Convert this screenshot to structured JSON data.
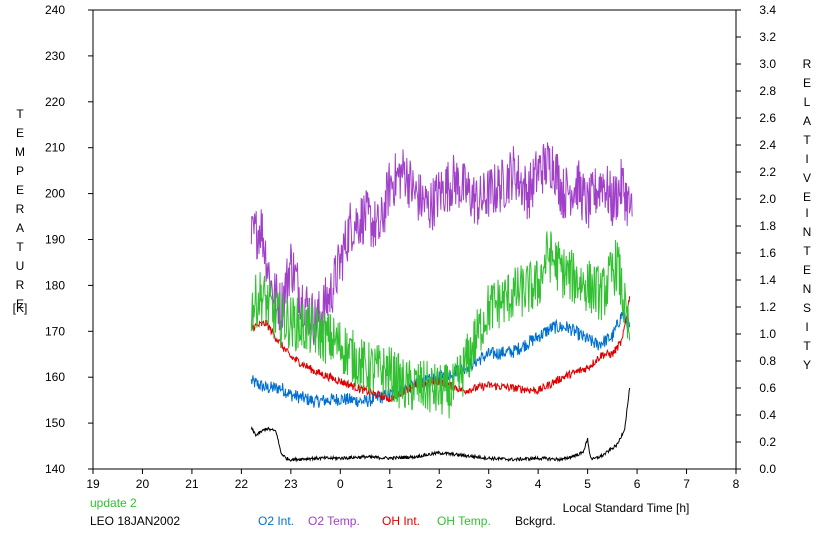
{
  "chart_data": {
    "type": "line",
    "xlabel": "Local Standard Time [h]",
    "x_ticks": [
      "19",
      "20",
      "21",
      "22",
      "23",
      "0",
      "1",
      "2",
      "3",
      "4",
      "5",
      "6",
      "7",
      "8"
    ],
    "xlim": [
      19,
      32
    ],
    "y_left": {
      "label_letters": [
        "T",
        "E",
        "M",
        "P",
        "E",
        "R",
        "A",
        "T",
        "U",
        "R",
        "E"
      ],
      "unit": "[K]",
      "ylim": [
        140,
        240
      ],
      "ticks": [
        "140",
        "150",
        "160",
        "170",
        "180",
        "190",
        "200",
        "210",
        "220",
        "230",
        "240"
      ]
    },
    "y_right": {
      "label_word1": [
        "R",
        "E",
        "L",
        "A",
        "T",
        "I",
        "V",
        "E"
      ],
      "label_word2": [
        "I",
        "N",
        "T",
        "E",
        "N",
        "S",
        "I",
        "T",
        "Y"
      ],
      "ylim": [
        0,
        3.4
      ],
      "ticks": [
        "0.0",
        "0.2",
        "0.4",
        "0.6",
        "0.8",
        "1.0",
        "1.2",
        "1.4",
        "1.6",
        "1.8",
        "2.0",
        "2.2",
        "2.4",
        "2.6",
        "2.8",
        "3.0",
        "3.2",
        "3.4"
      ]
    },
    "series": [
      {
        "name": "O2 Int.",
        "color": "#0070d0",
        "axis": "right",
        "noise": 0.05,
        "x": [
          22.2,
          22.5,
          22.8,
          23.0,
          23.5,
          24.0,
          24.5,
          25.0,
          25.5,
          26.0,
          26.5,
          27.0,
          27.5,
          28.0,
          28.3,
          28.6,
          28.9,
          29.2,
          29.5,
          29.7,
          29.85
        ],
        "y": [
          0.65,
          0.6,
          0.6,
          0.55,
          0.5,
          0.52,
          0.5,
          0.55,
          0.62,
          0.68,
          0.75,
          0.85,
          0.87,
          0.98,
          1.05,
          1.05,
          0.98,
          0.92,
          0.98,
          1.15,
          1.05
        ]
      },
      {
        "name": "O2 Temp.",
        "color": "#a040c8",
        "axis": "left",
        "noise": 6,
        "x": [
          22.2,
          22.4,
          22.6,
          22.8,
          23.0,
          23.2,
          23.5,
          23.8,
          24.0,
          24.2,
          24.5,
          24.8,
          25.0,
          25.3,
          25.5,
          25.8,
          26.0,
          26.3,
          26.5,
          26.8,
          27.0,
          27.3,
          27.5,
          27.8,
          28.0,
          28.3,
          28.5,
          28.8,
          29.0,
          29.3,
          29.5,
          29.7,
          29.9
        ],
        "y": [
          190,
          193,
          180,
          175,
          185,
          178,
          172,
          178,
          185,
          193,
          195,
          192,
          202,
          205,
          200,
          197,
          200,
          203,
          201,
          198,
          200,
          202,
          205,
          200,
          205,
          207,
          200,
          202,
          197,
          203,
          198,
          202,
          195
        ]
      },
      {
        "name": "OH Int.",
        "color": "#e00000",
        "axis": "right",
        "noise": 0.03,
        "x": [
          22.2,
          22.5,
          22.8,
          23.0,
          23.5,
          24.0,
          24.5,
          25.0,
          25.5,
          26.0,
          26.5,
          27.0,
          27.5,
          28.0,
          28.5,
          29.0,
          29.3,
          29.5,
          29.7,
          29.85
        ],
        "y": [
          1.05,
          1.08,
          0.92,
          0.83,
          0.72,
          0.65,
          0.58,
          0.52,
          0.62,
          0.65,
          0.58,
          0.62,
          0.6,
          0.58,
          0.68,
          0.75,
          0.85,
          0.85,
          0.95,
          1.28
        ]
      },
      {
        "name": "OH Temp.",
        "color": "#30c030",
        "axis": "left",
        "noise": 6,
        "x": [
          22.2,
          22.4,
          22.7,
          23.0,
          23.5,
          24.0,
          24.5,
          25.0,
          25.3,
          25.6,
          26.0,
          26.3,
          26.5,
          26.8,
          27.0,
          27.5,
          28.0,
          28.2,
          28.5,
          28.8,
          29.0,
          29.3,
          29.6,
          29.85
        ],
        "y": [
          175,
          178,
          173,
          172,
          170,
          167,
          162,
          161,
          158,
          158,
          157,
          157,
          162,
          170,
          175,
          178,
          180,
          187,
          183,
          181,
          180,
          178,
          185,
          168
        ]
      },
      {
        "name": "Bckgrd.",
        "color": "#000000",
        "axis": "right",
        "noise": 0.012,
        "x": [
          22.2,
          22.3,
          22.5,
          22.7,
          22.8,
          22.9,
          23.0,
          23.5,
          24.0,
          24.5,
          25.0,
          25.5,
          26.0,
          26.5,
          27.0,
          27.5,
          28.0,
          28.5,
          28.9,
          29.0,
          29.05,
          29.1,
          29.3,
          29.6,
          29.75,
          29.85
        ],
        "y": [
          0.3,
          0.25,
          0.3,
          0.28,
          0.12,
          0.08,
          0.07,
          0.08,
          0.08,
          0.09,
          0.08,
          0.09,
          0.12,
          0.1,
          0.08,
          0.07,
          0.08,
          0.07,
          0.12,
          0.22,
          0.1,
          0.07,
          0.1,
          0.18,
          0.3,
          0.6
        ]
      }
    ]
  },
  "footer": {
    "update_text": "update 2",
    "update_color": "#30c030",
    "station_text": "LEO 18JAN2002",
    "legend": [
      {
        "label": "O2 Int.",
        "color": "#0070d0"
      },
      {
        "label": "O2 Temp.",
        "color": "#a040c8"
      },
      {
        "label": "OH Int.",
        "color": "#e00000"
      },
      {
        "label": "OH Temp.",
        "color": "#30c030"
      },
      {
        "label": "Bckgrd.",
        "color": "#000000"
      }
    ]
  }
}
